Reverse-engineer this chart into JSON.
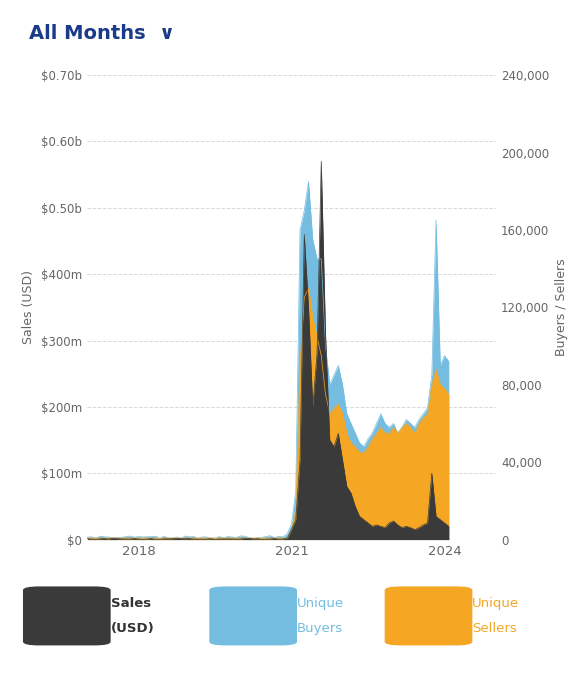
{
  "title": "All Months",
  "title_arrow": "∨",
  "ylabel_left": "Sales (USD)",
  "ylabel_right": "Buyers / Sellers",
  "left_yticks": [
    0,
    100000000,
    200000000,
    300000000,
    400000000,
    500000000,
    600000000,
    700000000
  ],
  "left_yticklabels": [
    "$0",
    "$100m",
    "$200m",
    "$300m",
    "$400m",
    "$0.50b",
    "$0.60b",
    "$0.70b"
  ],
  "right_yticks": [
    0,
    40000,
    80000,
    120000,
    160000,
    200000,
    240000
  ],
  "right_yticklabels": [
    "0",
    "40,000",
    "80,000",
    "120,000",
    "160,000",
    "200,000",
    "240,000"
  ],
  "xticks": [
    2018,
    2021,
    2024
  ],
  "xticklabels": [
    "2018",
    "2021",
    "2024"
  ],
  "legend_items": [
    {
      "label1": "Sales",
      "label2": "(USD)",
      "color": "#3a3a3a",
      "text_color": "#333333"
    },
    {
      "label1": "Unique",
      "label2": "Buyers",
      "color": "#74bde0",
      "text_color": "#74bde0"
    },
    {
      "label1": "Unique",
      "label2": "Sellers",
      "color": "#f5a623",
      "text_color": "#f5a623"
    }
  ],
  "background_color": "#ffffff",
  "grid_color": "#d0d0d0",
  "title_color": "#1a3a8a",
  "sales_color": "#3a3a3a",
  "buyers_color": "#74bde0",
  "sellers_color": "#f5a623",
  "xlim_left": 2017.0,
  "xlim_right": 2025.0,
  "ylim_left": 700000000,
  "ylim_right": 240000
}
